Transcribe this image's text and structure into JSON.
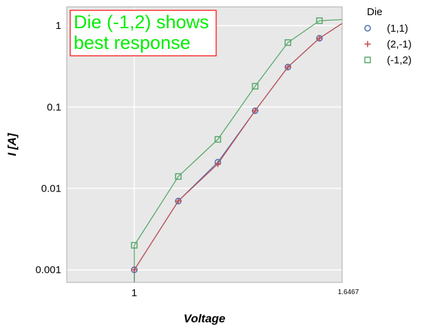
{
  "chart_data": {
    "type": "line",
    "xlabel": "Voltage",
    "ylabel": "I [A]",
    "x_scale": "linear",
    "y_scale": "log",
    "xlim": [
      0.79,
      1.6467
    ],
    "ylim": [
      0.0007,
      1.7
    ],
    "x_ticks": [
      {
        "value": 1,
        "label": "1"
      },
      {
        "value": 1.6467,
        "label": "1.6467"
      }
    ],
    "y_ticks": [
      {
        "value": 0.001,
        "label": "0.001"
      },
      {
        "value": 0.01,
        "label": "0.01"
      },
      {
        "value": 0.1,
        "label": "0.1"
      },
      {
        "value": 1,
        "label": "1"
      }
    ],
    "grid": true,
    "background": "#e8e8e8",
    "legend": {
      "title": "Die",
      "placement": "outside-top-right"
    },
    "annotation": {
      "lines": [
        "Die (-1,2) shows",
        "best response"
      ],
      "color": "#00ee00",
      "border_color": "#ff0000"
    },
    "series": [
      {
        "name": "(1,1)",
        "marker": "circle",
        "color": "#4c72b0",
        "x": [
          1.0,
          1.137,
          1.26,
          1.376,
          1.478,
          1.576,
          1.667
        ],
        "y": [
          0.001,
          0.007,
          0.021,
          0.09,
          0.31,
          0.7,
          1.2
        ]
      },
      {
        "name": "(2,-1)",
        "marker": "plus",
        "color": "#c44e52",
        "x": [
          1.0,
          1.137,
          1.26,
          1.376,
          1.478,
          1.576,
          1.667
        ],
        "y": [
          0.001,
          0.007,
          0.02,
          0.09,
          0.31,
          0.7,
          1.2
        ]
      },
      {
        "name": "(-1,2)",
        "marker": "square",
        "color": "#55a868",
        "x": [
          1.0,
          1.137,
          1.26,
          1.376,
          1.478,
          1.576,
          1.667
        ],
        "y": [
          0.002,
          0.014,
          0.04,
          0.18,
          0.62,
          1.15,
          1.2
        ]
      }
    ]
  }
}
